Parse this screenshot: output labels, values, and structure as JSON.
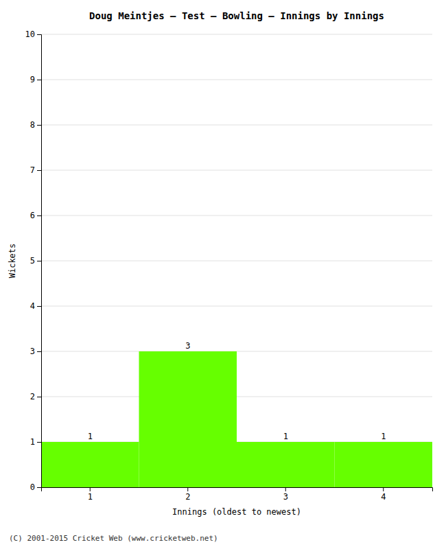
{
  "chart_data": {
    "type": "bar",
    "title": "Doug Meintjes – Test – Bowling – Innings by Innings",
    "xlabel": "Innings (oldest to newest)",
    "ylabel": "Wickets",
    "categories": [
      1,
      2,
      3,
      4
    ],
    "values": [
      1,
      3,
      1,
      1
    ],
    "color": "#66ff00",
    "ylim": [
      0,
      10
    ],
    "yticks": [
      0,
      1,
      2,
      3,
      4,
      5,
      6,
      7,
      8,
      9,
      10
    ],
    "grid": true,
    "data_labels": true,
    "annotations": [
      "(C) 2001-2015 Cricket Web (www.cricketweb.net)"
    ]
  }
}
